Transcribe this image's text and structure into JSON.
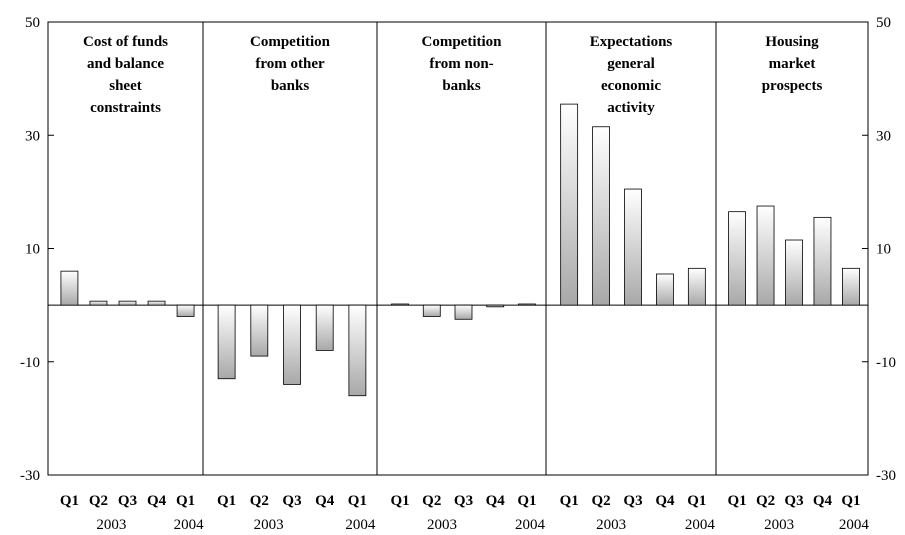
{
  "chart_data": {
    "type": "bar",
    "ylim": [
      -30,
      50
    ],
    "yticks": [
      50,
      30,
      10,
      -10,
      -30
    ],
    "grid": false,
    "quarters": [
      "Q1",
      "Q2",
      "Q3",
      "Q4",
      "Q1"
    ],
    "years": [
      "2003",
      "2004"
    ],
    "panels": [
      {
        "title": [
          "Cost of funds",
          "and balance",
          "sheet",
          "constraints"
        ],
        "values": [
          6,
          0.7,
          0.7,
          0.7,
          -2
        ]
      },
      {
        "title": [
          "Competition",
          "from other",
          "banks"
        ],
        "values": [
          -13,
          -9,
          -14,
          -8,
          -16
        ]
      },
      {
        "title": [
          "Competition",
          "from non-",
          "banks"
        ],
        "values": [
          0.2,
          -2,
          -2.5,
          -0.3,
          0.2
        ]
      },
      {
        "title": [
          "Expectations",
          "general",
          "economic",
          "activity"
        ],
        "values": [
          35.5,
          31.5,
          20.5,
          5.5,
          6.5
        ]
      },
      {
        "title": [
          "Housing",
          "market",
          "prospects"
        ],
        "values": [
          16.5,
          17.5,
          11.5,
          15.5,
          6.5
        ]
      }
    ]
  }
}
